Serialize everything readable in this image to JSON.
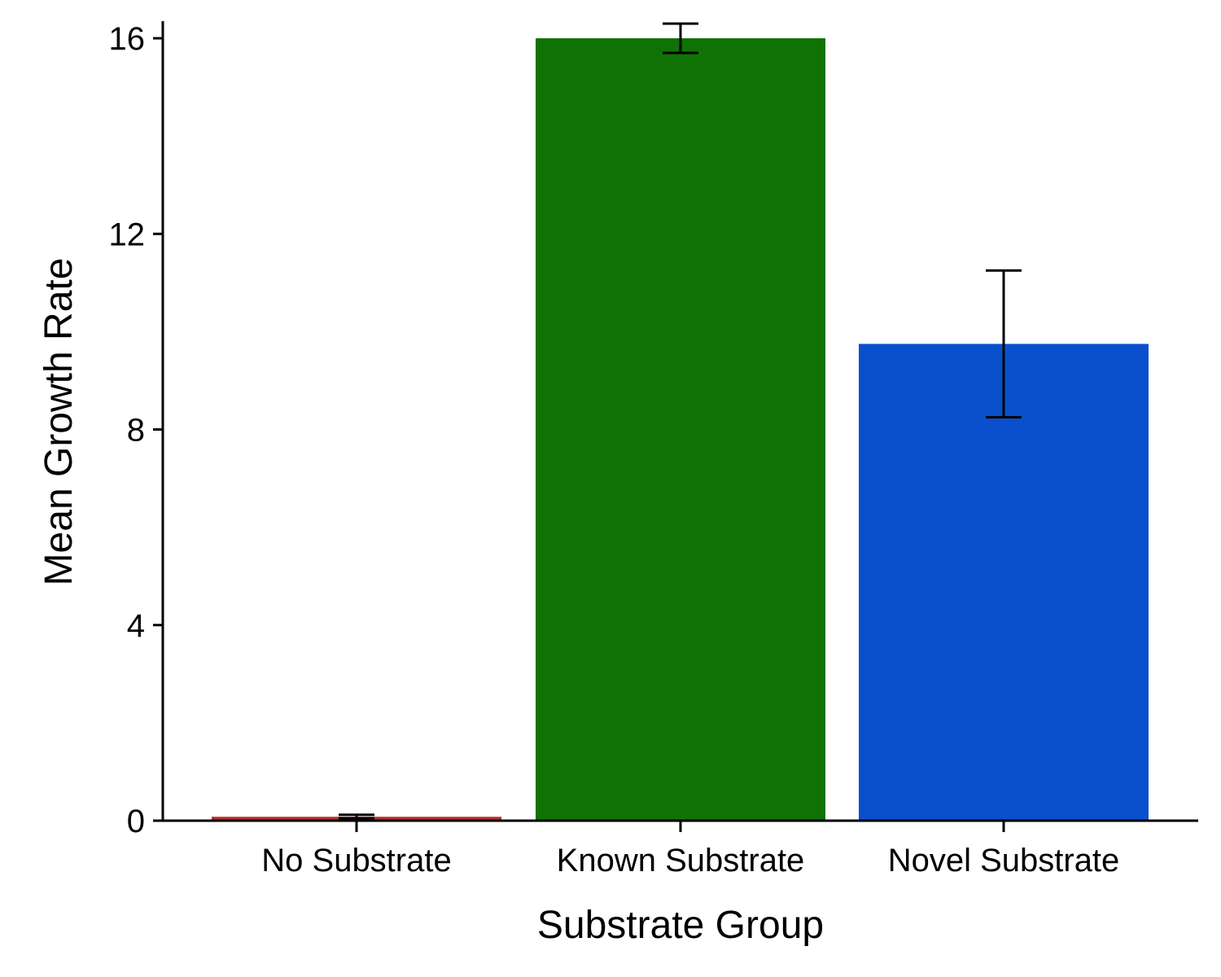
{
  "chart_data": {
    "type": "bar",
    "xlabel": "Substrate Group",
    "ylabel": "Mean Growth Rate",
    "categories": [
      "No Substrate",
      "Known Substrate",
      "Novel Substrate"
    ],
    "values": [
      0.08,
      16.0,
      9.75
    ],
    "error_low": [
      0.05,
      15.7,
      8.25
    ],
    "error_high": [
      0.12,
      16.3,
      11.25
    ],
    "colors": [
      "#B5302A",
      "#117204",
      "#0A50CC"
    ],
    "ylim": [
      0,
      16.35
    ],
    "yticks": [
      "0",
      "4",
      "8",
      "12",
      "16"
    ],
    "grid": false,
    "legend": "none"
  }
}
